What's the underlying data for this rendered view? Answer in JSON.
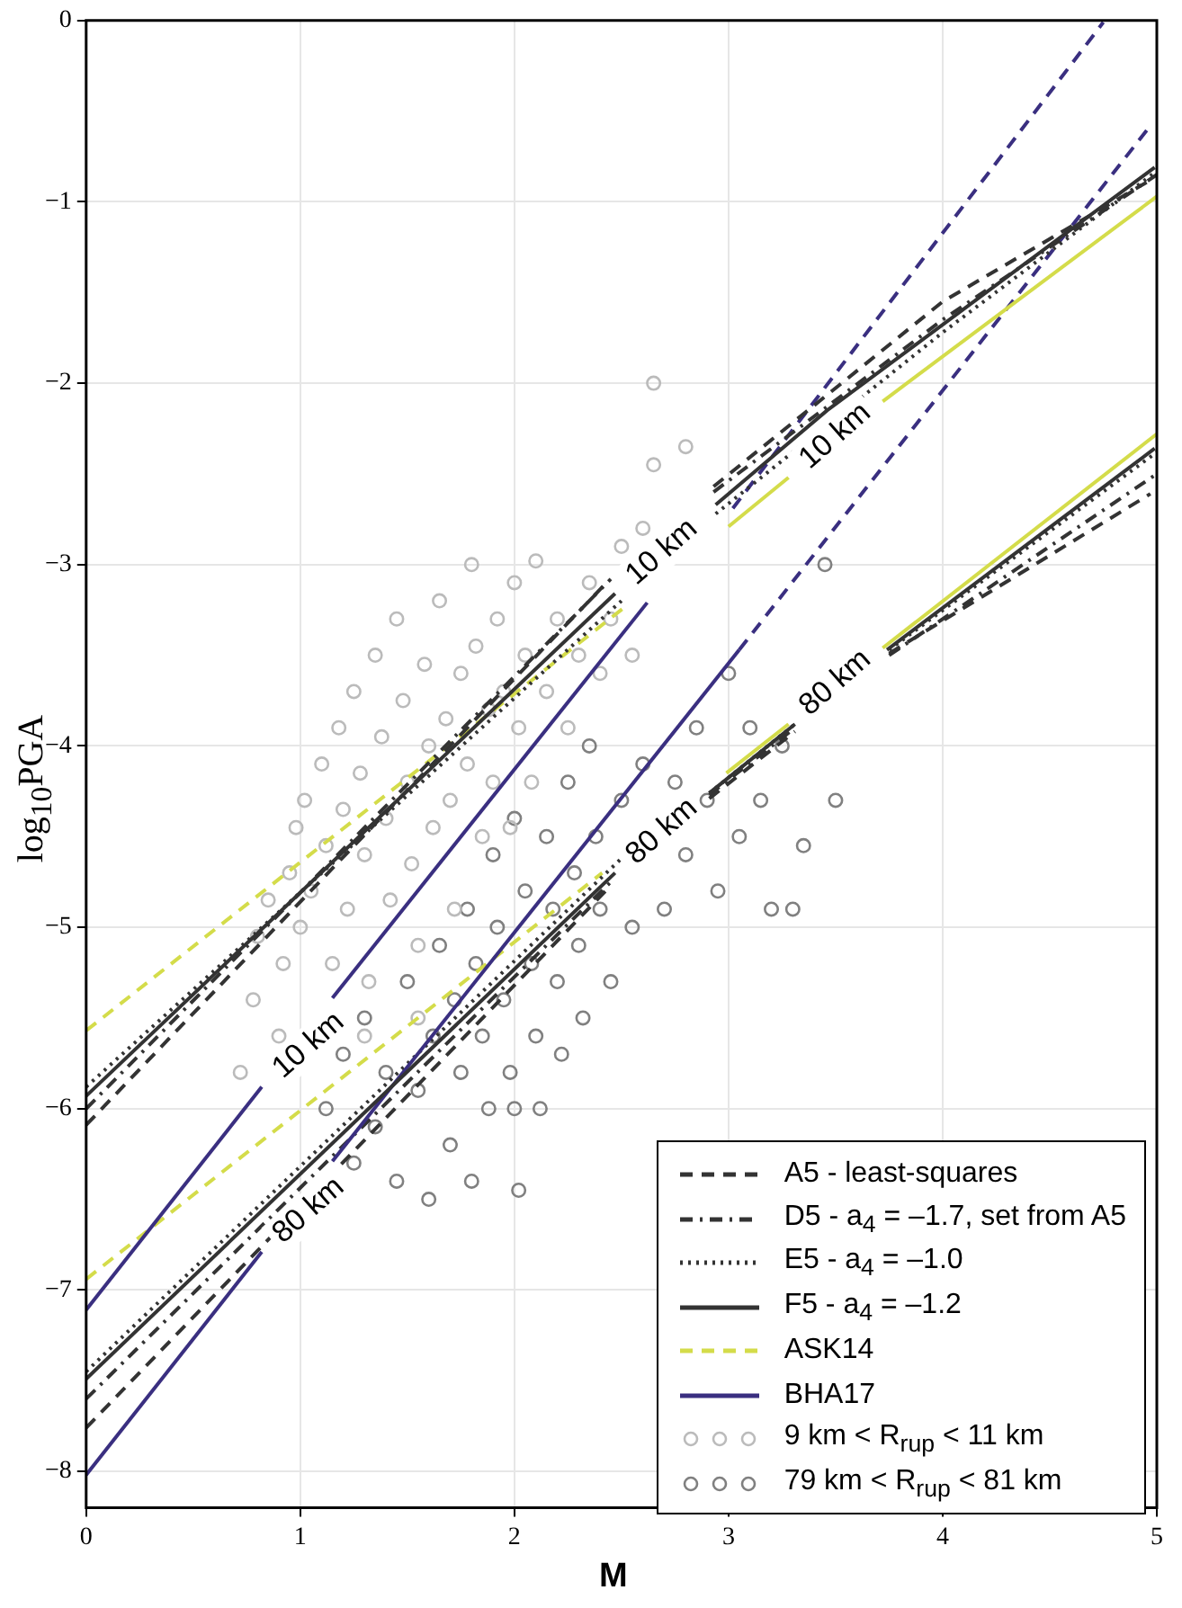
{
  "chart_data": {
    "type": "line",
    "xlabel": "M",
    "ylabel": "log$_{10}$PGA",
    "xlim": [
      0,
      5
    ],
    "ylim": [
      -8.2,
      0
    ],
    "xticks": [
      0,
      1,
      2,
      3,
      4,
      5
    ],
    "yticks": [
      -8,
      -7,
      -6,
      -5,
      -4,
      -3,
      -2,
      -1,
      0
    ],
    "grid": true,
    "legend": "bottom right",
    "series": [
      {
        "type": "scatter",
        "name": "9 km < R$_{rup}$ < 11 km",
        "color": "#bbbbbb",
        "marker": "circle",
        "x": [
          0.72,
          0.78,
          0.8,
          0.85,
          0.9,
          0.92,
          0.95,
          0.98,
          1.0,
          1.02,
          1.05,
          1.1,
          1.12,
          1.15,
          1.18,
          1.2,
          1.22,
          1.25,
          1.28,
          1.3,
          1.32,
          1.35,
          1.38,
          1.4,
          1.42,
          1.45,
          1.48,
          1.5,
          1.52,
          1.55,
          1.58,
          1.6,
          1.62,
          1.65,
          1.68,
          1.7,
          1.72,
          1.75,
          1.78,
          1.8,
          1.82,
          1.85,
          1.88,
          1.9,
          1.92,
          1.95,
          1.98,
          2.0,
          2.02,
          2.05,
          2.08,
          2.1,
          2.15,
          2.2,
          2.25,
          2.3,
          2.35,
          2.4,
          2.45,
          2.5,
          2.55,
          2.6,
          2.65,
          2.65,
          2.8,
          1.3,
          1.55
        ],
        "values": [
          -5.8,
          -5.4,
          -5.05,
          -4.85,
          -5.6,
          -5.2,
          -4.7,
          -4.45,
          -5.0,
          -4.3,
          -4.8,
          -4.1,
          -4.55,
          -5.2,
          -3.9,
          -4.35,
          -4.9,
          -3.7,
          -4.15,
          -4.6,
          -5.3,
          -3.5,
          -3.95,
          -4.4,
          -4.85,
          -3.3,
          -3.75,
          -4.2,
          -4.65,
          -5.1,
          -3.55,
          -4.0,
          -4.45,
          -3.2,
          -3.85,
          -4.3,
          -4.9,
          -3.6,
          -4.1,
          -3.0,
          -3.45,
          -4.5,
          -3.8,
          -4.2,
          -3.3,
          -3.7,
          -4.45,
          -3.1,
          -3.9,
          -3.5,
          -4.2,
          -2.98,
          -3.7,
          -3.3,
          -3.9,
          -3.5,
          -3.1,
          -3.6,
          -3.3,
          -2.9,
          -3.5,
          -2.8,
          -2.0,
          -2.45,
          -2.35,
          -5.6,
          -5.5
        ]
      },
      {
        "type": "scatter",
        "name": "79 km < R$_{rup}$ < 81 km",
        "color": "#808080",
        "marker": "circle",
        "x": [
          1.12,
          1.2,
          1.25,
          1.3,
          1.35,
          1.4,
          1.45,
          1.5,
          1.55,
          1.6,
          1.62,
          1.65,
          1.7,
          1.72,
          1.75,
          1.78,
          1.8,
          1.82,
          1.85,
          1.88,
          1.9,
          1.92,
          1.95,
          1.98,
          2.0,
          2.02,
          2.05,
          2.08,
          2.1,
          2.12,
          2.15,
          2.18,
          2.2,
          2.22,
          2.25,
          2.28,
          2.3,
          2.32,
          2.35,
          2.38,
          2.4,
          2.45,
          2.5,
          2.55,
          2.6,
          2.7,
          2.75,
          2.8,
          2.85,
          2.9,
          2.95,
          3.0,
          3.05,
          3.1,
          3.15,
          3.2,
          3.25,
          3.3,
          3.35,
          3.45,
          3.5,
          2.0
        ],
        "values": [
          -6.0,
          -5.7,
          -6.3,
          -5.5,
          -6.1,
          -5.8,
          -6.4,
          -5.3,
          -5.9,
          -6.5,
          -5.6,
          -5.1,
          -6.2,
          -5.4,
          -5.8,
          -4.9,
          -6.4,
          -5.2,
          -5.6,
          -6.0,
          -4.6,
          -5.0,
          -5.4,
          -5.8,
          -4.4,
          -6.45,
          -4.8,
          -5.2,
          -5.6,
          -6.0,
          -4.5,
          -4.9,
          -5.3,
          -5.7,
          -4.2,
          -4.7,
          -5.1,
          -5.5,
          -4.0,
          -4.5,
          -4.9,
          -5.3,
          -4.3,
          -5.0,
          -4.1,
          -4.9,
          -4.2,
          -4.6,
          -3.9,
          -4.3,
          -4.8,
          -3.6,
          -4.5,
          -3.9,
          -4.3,
          -4.9,
          -4.0,
          -4.9,
          -4.55,
          -3.0,
          -4.3,
          -6.0
        ]
      },
      {
        "type": "line",
        "name": "A5 - least-squares",
        "color": "#333333",
        "line_style": "dashed",
        "x": [
          0,
          2.43
        ],
        "values": [
          -6.09,
          -3.1
        ]
      },
      {
        "type": "line",
        "color": "#333333",
        "line_style": "dashed",
        "x": [
          2.93,
          4,
          4.97
        ],
        "values": [
          -2.57,
          -1.55,
          -0.88
        ]
      },
      {
        "type": "line",
        "color": "#333333",
        "line_style": "dashed",
        "x": [
          0,
          2.45
        ],
        "values": [
          -7.76,
          -4.77
        ]
      },
      {
        "type": "line",
        "color": "#333333",
        "line_style": "dashed",
        "x": [
          2.91,
          3.31
        ],
        "values": [
          -4.29,
          -3.92
        ]
      },
      {
        "type": "line",
        "color": "#333333",
        "line_style": "dashed",
        "x": [
          3.75,
          4.97
        ],
        "values": [
          -3.49,
          -2.61
        ]
      },
      {
        "type": "line",
        "name": "D5 - a$_{4}$ = –1.7, set from A5",
        "color": "#333333",
        "line_style": "dashdot",
        "x": [
          0,
          2.45
        ],
        "values": [
          -6.0,
          -3.08
        ]
      },
      {
        "type": "line",
        "color": "#333333",
        "line_style": "dashdot",
        "x": [
          2.93,
          4,
          5
        ],
        "values": [
          -2.6,
          -1.65,
          -0.85
        ]
      },
      {
        "type": "line",
        "color": "#333333",
        "line_style": "dashdot",
        "x": [
          0,
          2.45
        ],
        "values": [
          -7.6,
          -4.75
        ]
      },
      {
        "type": "line",
        "color": "#333333",
        "line_style": "dashdot",
        "x": [
          2.91,
          3.31
        ],
        "values": [
          -4.27,
          -3.9
        ]
      },
      {
        "type": "line",
        "color": "#333333",
        "line_style": "dashdot",
        "x": [
          3.75,
          5
        ],
        "values": [
          -3.5,
          -2.5
        ]
      },
      {
        "type": "line",
        "name": "E5 - a$_{4}$ = –1.0",
        "color": "#333333",
        "line_style": "dotted",
        "x": [
          0,
          2.5
        ],
        "values": [
          -5.88,
          -3.2
        ]
      },
      {
        "type": "line",
        "color": "#333333",
        "line_style": "dotted",
        "x": [
          2.94,
          4,
          5
        ],
        "values": [
          -2.72,
          -1.72,
          -0.83
        ]
      },
      {
        "type": "line",
        "color": "#333333",
        "line_style": "dotted",
        "x": [
          0,
          2.5
        ],
        "values": [
          -7.45,
          -4.62
        ]
      },
      {
        "type": "line",
        "color": "#333333",
        "line_style": "dotted",
        "x": [
          2.91,
          3.31
        ],
        "values": [
          -4.26,
          -3.88
        ]
      },
      {
        "type": "line",
        "color": "#333333",
        "line_style": "dotted",
        "x": [
          3.75,
          5
        ],
        "values": [
          -3.47,
          -2.38
        ]
      },
      {
        "type": "line",
        "name": "F5 - a$_{4}$ = –1.2",
        "color": "#333333",
        "line_style": "solid",
        "x": [
          0,
          2.47
        ],
        "values": [
          -5.93,
          -3.16
        ]
      },
      {
        "type": "line",
        "color": "#333333",
        "line_style": "solid",
        "x": [
          2.94,
          3.46,
          4.99
        ],
        "values": [
          -2.67,
          -2.15,
          -0.81
        ]
      },
      {
        "type": "line",
        "color": "#333333",
        "line_style": "solid",
        "x": [
          0,
          2.47
        ],
        "values": [
          -7.49,
          -4.7
        ]
      },
      {
        "type": "line",
        "color": "#333333",
        "line_style": "solid",
        "x": [
          2.91,
          3.31
        ],
        "values": [
          -4.26,
          -3.88
        ]
      },
      {
        "type": "line",
        "color": "#333333",
        "line_style": "solid",
        "x": [
          3.74,
          4.99
        ],
        "values": [
          -3.47,
          -2.36
        ]
      },
      {
        "type": "line",
        "name": "ASK14",
        "color": "#d4dc4a",
        "line_style": "dashed",
        "x": [
          0,
          2.52
        ],
        "values": [
          -5.57,
          -3.23
        ]
      },
      {
        "type": "line",
        "color": "#d4dc4a",
        "line_style": "dashed",
        "x": [
          0,
          2.41
        ],
        "values": [
          -6.94,
          -4.7
        ]
      },
      {
        "type": "line",
        "color": "#d4dc4a",
        "line_style": "solid",
        "x": [
          3.0,
          3.28
        ],
        "values": [
          -2.79,
          -2.52
        ]
      },
      {
        "type": "line",
        "color": "#d4dc4a",
        "line_style": "solid",
        "x": [
          3.72,
          5.0
        ],
        "values": [
          -2.1,
          -0.97
        ]
      },
      {
        "type": "line",
        "color": "#d4dc4a",
        "line_style": "solid",
        "x": [
          2.99,
          3.28
        ],
        "values": [
          -4.15,
          -3.88
        ]
      },
      {
        "type": "line",
        "color": "#d4dc4a",
        "line_style": "solid",
        "x": [
          3.72,
          5.0
        ],
        "values": [
          -3.46,
          -2.28
        ]
      },
      {
        "type": "line",
        "name": "BHA17",
        "color": "#3a2f80",
        "line_style": "solid",
        "x": [
          0,
          0.82
        ],
        "values": [
          -7.11,
          -5.88
        ]
      },
      {
        "type": "line",
        "color": "#3a2f80",
        "line_style": "solid",
        "x": [
          1.15,
          2.62
        ],
        "values": [
          -5.39,
          -3.21
        ]
      },
      {
        "type": "line",
        "color": "#3a2f80",
        "line_style": "solid",
        "x": [
          0,
          0.82
        ],
        "values": [
          -8.02,
          -6.79
        ]
      },
      {
        "type": "line",
        "color": "#3a2f80",
        "line_style": "solid",
        "x": [
          1.15,
          3.05
        ],
        "values": [
          -6.29,
          -3.47
        ]
      },
      {
        "type": "line",
        "color": "#3a2f80",
        "line_style": "dashed",
        "x": [
          3.02,
          4.75
        ],
        "values": [
          -2.69,
          -0.01
        ]
      },
      {
        "type": "line",
        "color": "#3a2f80",
        "line_style": "dashed",
        "x": [
          3.05,
          4.97
        ],
        "values": [
          -3.47,
          -0.58
        ]
      }
    ],
    "annotations": [
      {
        "text": "10 km",
        "x": 0.82,
        "y": -5.88
      },
      {
        "text": "80 km",
        "x": 0.82,
        "y": -6.79
      },
      {
        "text": "10 km",
        "x": 2.47,
        "y": -3.16
      },
      {
        "text": "80 km",
        "x": 2.47,
        "y": -4.7
      },
      {
        "text": "10 km",
        "x": 3.28,
        "y": -2.52
      },
      {
        "text": "80 km",
        "x": 3.28,
        "y": -3.88
      }
    ]
  }
}
